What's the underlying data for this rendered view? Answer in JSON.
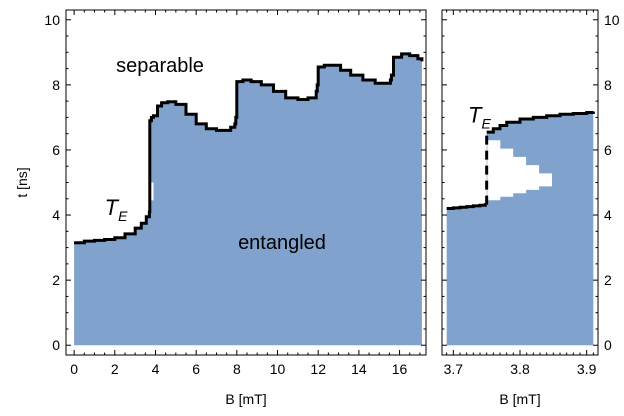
{
  "chart_data": [
    {
      "type": "area",
      "xlabel": "B [mT]",
      "ylabel": "t [ns]",
      "xlim": [
        -0.4,
        17.3
      ],
      "ylim": [
        -0.3,
        10.3
      ],
      "x_ticks": [
        0,
        2,
        4,
        6,
        8,
        10,
        12,
        14,
        16
      ],
      "y_ticks": [
        0,
        2,
        4,
        6,
        8,
        10
      ],
      "fill_color": "#80a2cc",
      "boundary_color": "#000000",
      "region_labels": {
        "above": "separable",
        "below": "entangled"
      },
      "boundary_label": {
        "main": "T",
        "sub": "E",
        "at": [
          1.5,
          4.0
        ]
      },
      "series": [
        {
          "x": [
            0,
            0.5,
            1,
            1.5,
            2,
            2.5,
            3,
            3.3,
            3.55,
            3.7,
            3.72,
            3.8,
            3.9,
            4.1,
            4.3,
            4.6,
            5.0,
            5.5,
            6.0,
            6.5,
            7.0,
            7.4,
            7.7,
            7.9,
            7.95,
            8.0,
            8.3,
            8.7,
            9.2,
            9.8,
            10.4,
            11.0,
            11.5,
            11.9,
            11.95,
            12.0,
            12.3,
            12.7,
            13.1,
            13.6,
            14.2,
            14.8,
            15.3,
            15.55,
            15.6,
            15.7,
            16.1,
            16.5,
            16.9,
            17.1
          ],
          "values": [
            3.15,
            3.2,
            3.22,
            3.25,
            3.3,
            3.42,
            3.6,
            3.75,
            3.95,
            4.1,
            6.9,
            7.0,
            7.05,
            7.35,
            7.45,
            7.48,
            7.4,
            7.1,
            6.8,
            6.65,
            6.6,
            6.6,
            6.7,
            6.8,
            7.0,
            8.1,
            8.15,
            8.1,
            8.0,
            7.8,
            7.6,
            7.55,
            7.6,
            7.8,
            8.0,
            8.55,
            8.6,
            8.6,
            8.45,
            8.3,
            8.15,
            8.05,
            8.05,
            8.15,
            8.3,
            8.85,
            8.95,
            8.9,
            8.8,
            8.72
          ]
        }
      ],
      "notch": {
        "x": [
          3.72,
          3.9
        ],
        "y": [
          4.45,
          5.0
        ]
      }
    },
    {
      "type": "area",
      "xlabel": "B [mT]",
      "ylabel": "",
      "xlim": [
        3.683,
        3.917
      ],
      "ylim": [
        -0.3,
        10.3
      ],
      "x_ticks": [
        3.7,
        3.8,
        3.9
      ],
      "x_tick_labels": [
        "3.7",
        "3.8",
        "3.9"
      ],
      "y_ticks": [
        0,
        2,
        4,
        6,
        8,
        10
      ],
      "fill_color": "#80a2cc",
      "boundary_label": {
        "main": "T",
        "sub": "E",
        "at": [
          3.722,
          6.85
        ]
      },
      "series": [
        {
          "x": [
            3.69,
            3.7,
            3.71,
            3.72,
            3.73,
            3.74,
            3.748,
            3.75,
            3.76,
            3.77,
            3.78,
            3.8,
            3.82,
            3.84,
            3.86,
            3.88,
            3.9,
            3.91
          ],
          "values": [
            4.2,
            4.22,
            4.24,
            4.26,
            4.28,
            4.3,
            4.32,
            6.55,
            6.65,
            6.75,
            6.85,
            6.95,
            7.0,
            7.05,
            7.1,
            7.12,
            7.15,
            7.18
          ]
        }
      ],
      "gap": {
        "left_x": 3.751,
        "left_y": [
          4.35,
          6.55
        ],
        "right_tip_x": 3.848,
        "right_tip_y": [
          4.88,
          5.28
        ]
      }
    }
  ]
}
